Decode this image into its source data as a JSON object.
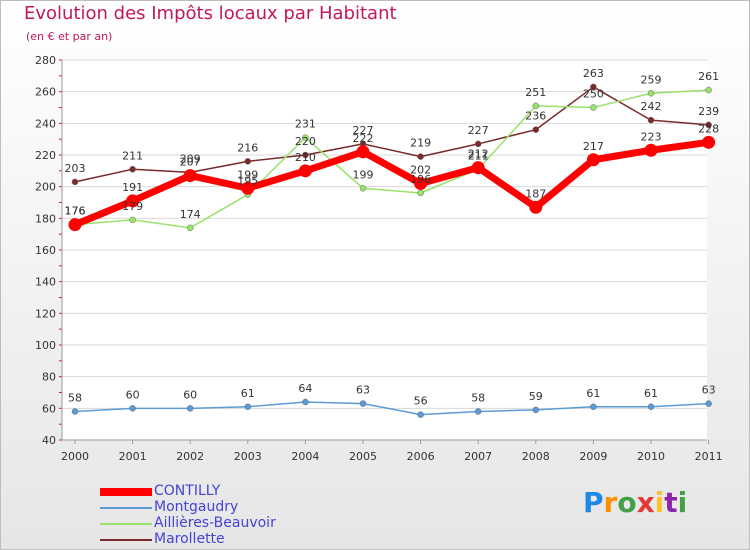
{
  "chart_data": {
    "type": "line",
    "title": "Evolution des Impôts locaux par Habitant",
    "subtitle": "(en € et par an)",
    "x": [
      "2000",
      "2001",
      "2002",
      "2003",
      "2004",
      "2005",
      "2006",
      "2007",
      "2008",
      "2009",
      "2010",
      "2011"
    ],
    "ylim": [
      40,
      280
    ],
    "yticks": [
      40,
      60,
      80,
      100,
      120,
      140,
      160,
      180,
      200,
      220,
      240,
      260,
      280
    ],
    "grid": true,
    "series": [
      {
        "name": "CONTILLY",
        "color": "#ff0000",
        "values": [
          176,
          191,
          207,
          199,
          210,
          222,
          202,
          212,
          187,
          217,
          223,
          228
        ]
      },
      {
        "name": "Montgaudry",
        "color": "#5b9bd5",
        "values": [
          58,
          60,
          60,
          61,
          64,
          63,
          56,
          58,
          59,
          61,
          61,
          63
        ]
      },
      {
        "name": "Aillières-Beauvoir",
        "color": "#99e36b",
        "values": [
          176,
          179,
          174,
          195,
          231,
          199,
          196,
          211,
          251,
          250,
          259,
          261
        ]
      },
      {
        "name": "Marollette",
        "color": "#7a2a2a",
        "values": [
          203,
          211,
          209,
          216,
          220,
          227,
          219,
          227,
          236,
          263,
          242,
          239
        ]
      }
    ],
    "labels": [
      [
        "176",
        "191",
        "207",
        "199",
        "210",
        "222",
        "202",
        "212",
        "187",
        "217",
        "223",
        "228"
      ],
      [
        "58",
        "60",
        "60",
        "61",
        "64",
        "63",
        "56",
        "58",
        "59",
        "61",
        "61",
        "63"
      ],
      [
        "176",
        "179",
        "174",
        "195",
        "231",
        "199",
        "196",
        "211",
        "251",
        "250",
        "259",
        "261"
      ],
      [
        "203",
        "211",
        "209",
        "216",
        "220",
        "227",
        "219",
        "227",
        "236",
        "263",
        "242",
        "239"
      ]
    ],
    "legend_position": "bottom-left"
  },
  "legend": [
    {
      "label": "CONTILLY",
      "color": "#ff0000",
      "thick": true
    },
    {
      "label": "Montgaudry",
      "color": "#5b9bd5",
      "thick": false
    },
    {
      "label": "Aillières-Beauvoir",
      "color": "#99e36b",
      "thick": false
    },
    {
      "label": "Marollette",
      "color": "#7a2a2a",
      "thick": false
    }
  ],
  "brand": {
    "letters": [
      "P",
      "r",
      "o",
      "x",
      "i",
      "t",
      "i"
    ],
    "colors": [
      "#1e88e5",
      "#ff8f00",
      "#43a047",
      "#e53935",
      "#fbc02d",
      "#8e24aa",
      "#43a047"
    ]
  }
}
